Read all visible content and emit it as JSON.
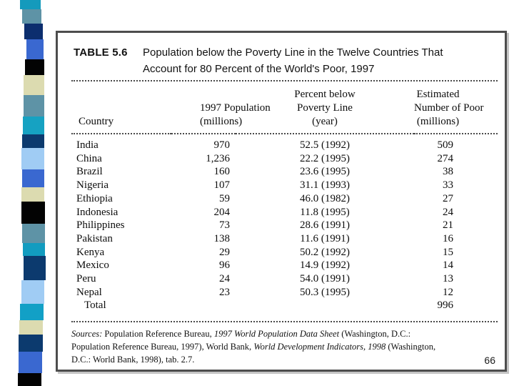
{
  "slide": {
    "page_number": "66"
  },
  "sidebar": {
    "colors": [
      "#149abc",
      "#5e93a6",
      "#0c2e6e",
      "#3a68d0",
      "#030303",
      "#dcdbb0",
      "#5e93a6",
      "#16a2c2",
      "#0c3a6e",
      "#a0ccf4",
      "#3a68d0",
      "#dcdbb0",
      "#030303",
      "#5e93a6",
      "#129cc0",
      "#0c3a6e",
      "#a0ccf4",
      "#12a0c6",
      "#dcdbb0",
      "#0c3a6e",
      "#3a68d0",
      "#030303"
    ]
  },
  "table": {
    "label": "TABLE 5.6",
    "title_line1": "Population below the Poverty Line in the Twelve Countries That",
    "title_line2": "Account for 80 Percent of the World's Poor, 1997",
    "columns": {
      "country": "Country",
      "population_l1": "1997 Population",
      "population_l2": "(millions)",
      "percent_l1": "Percent below",
      "percent_l2": "Poverty Line",
      "percent_l3": "(year)",
      "poor_l1": "Estimated",
      "poor_l2": "Number of Poor",
      "poor_l3": "(millions)"
    },
    "rows": [
      {
        "country": "India",
        "population": "970",
        "percent": "52.5 (1992)",
        "poor": "509"
      },
      {
        "country": "China",
        "population": "1,236",
        "percent": "22.2 (1995)",
        "poor": "274"
      },
      {
        "country": "Brazil",
        "population": "160",
        "percent": "23.6 (1995)",
        "poor": "38"
      },
      {
        "country": "Nigeria",
        "population": "107",
        "percent": "31.1 (1993)",
        "poor": "33"
      },
      {
        "country": "Ethiopia",
        "population": "59",
        "percent": "46.0 (1982)",
        "poor": "27"
      },
      {
        "country": "Indonesia",
        "population": "204",
        "percent": "11.8 (1995)",
        "poor": "24"
      },
      {
        "country": "Philippines",
        "population": "73",
        "percent": "28.6 (1991)",
        "poor": "21"
      },
      {
        "country": "Pakistan",
        "population": "138",
        "percent": "11.6 (1991)",
        "poor": "16"
      },
      {
        "country": "Kenya",
        "population": "29",
        "percent": "50.2 (1992)",
        "poor": "15"
      },
      {
        "country": "Mexico",
        "population": "96",
        "percent": "14.9 (1992)",
        "poor": "14"
      },
      {
        "country": "Peru",
        "population": "24",
        "percent": "54.0 (1991)",
        "poor": "13"
      },
      {
        "country": "Nepal",
        "population": "23",
        "percent": "50.3 (1995)",
        "poor": "12"
      },
      {
        "country": "Total",
        "population": "",
        "percent": "",
        "poor": "996"
      }
    ],
    "sources": {
      "l1s1": "Sources: ",
      "l1s2": "Population Reference Bureau, ",
      "l1s3": "1997 World Population Data Sheet",
      "l1s4": " (Washington, D.C.:",
      "l2s1": "Population Reference Bureau, 1997), World Bank, ",
      "l2s2": "World Development Indicators, 1998",
      "l2s3": " (Washington,",
      "l3s1": "D.C.: World Bank, 1998), tab. 2.7."
    }
  }
}
